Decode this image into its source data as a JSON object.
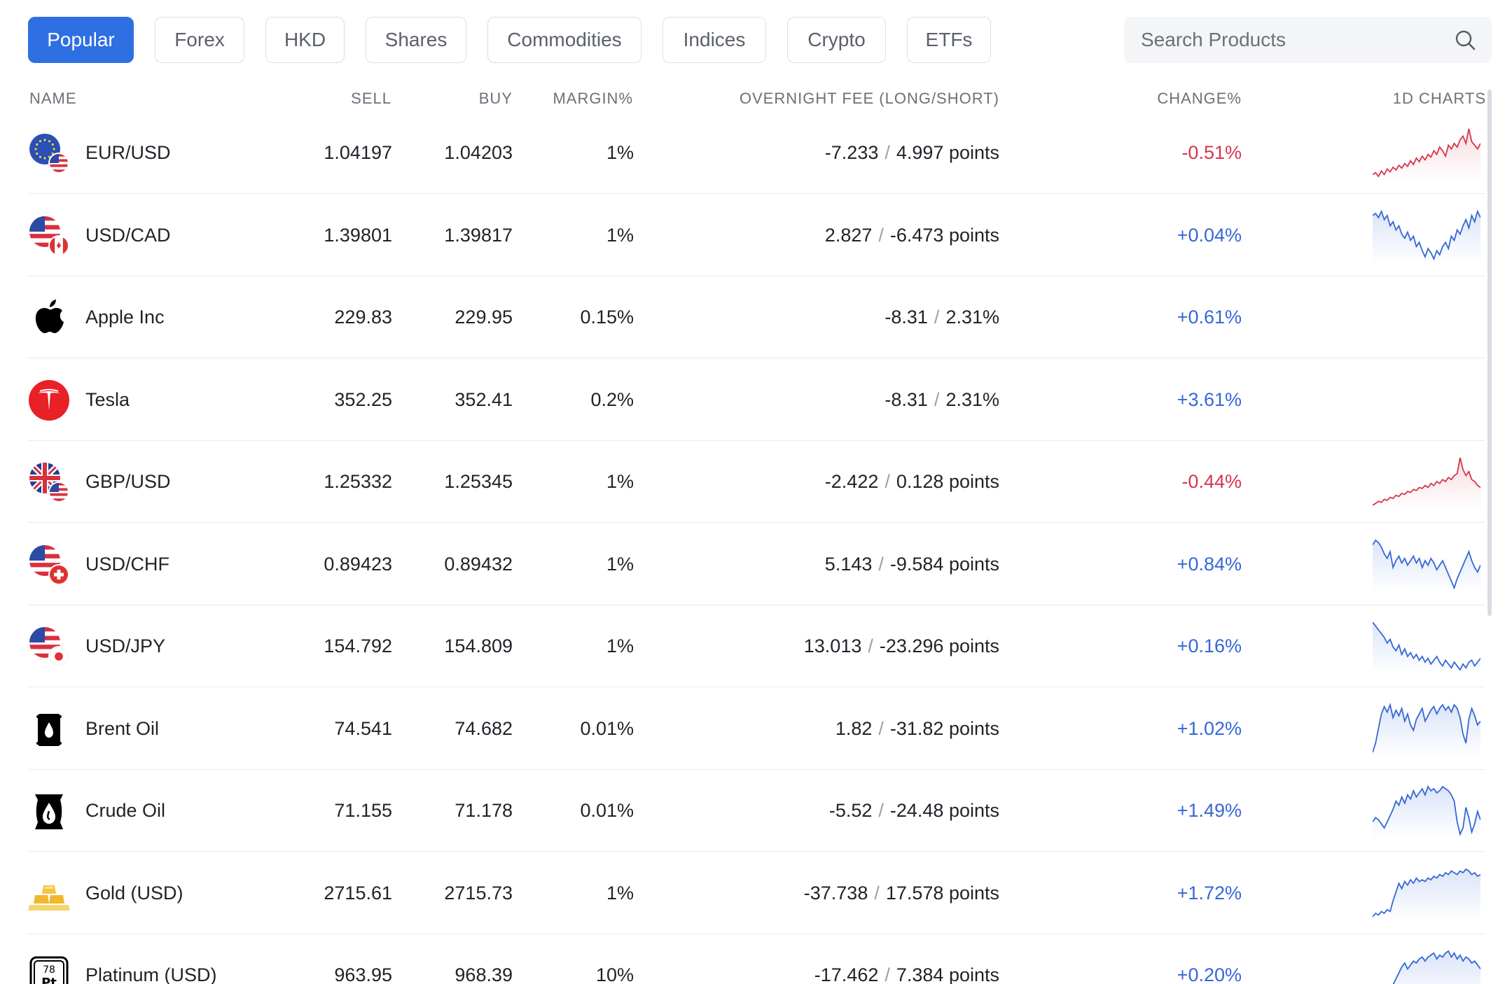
{
  "tabs": [
    {
      "label": "Popular",
      "active": true
    },
    {
      "label": "Forex",
      "active": false
    },
    {
      "label": "HKD",
      "active": false
    },
    {
      "label": "Shares",
      "active": false
    },
    {
      "label": "Commodities",
      "active": false
    },
    {
      "label": "Indices",
      "active": false
    },
    {
      "label": "Crypto",
      "active": false
    },
    {
      "label": "ETFs",
      "active": false
    }
  ],
  "search": {
    "placeholder": "Search Products",
    "icon": "search-icon"
  },
  "columns": {
    "name": "NAME",
    "sell": "SELL",
    "buy": "BUY",
    "margin": "MARGIN%",
    "fee": "OVERNIGHT FEE (LONG/SHORT)",
    "change": "CHANGE%",
    "charts": "1D CHARTS"
  },
  "colors": {
    "accent": "#2f6fe4",
    "negative": "#d6364a",
    "positive": "#3667d6"
  },
  "products": [
    {
      "name": "EUR/USD",
      "icon": "eur-usd-flag-icon",
      "sell": "1.04197",
      "buy": "1.04203",
      "margin": "1%",
      "fee_long": "-7.233",
      "fee_short": "4.997 points",
      "change": "-0.51%",
      "direction": "down",
      "spark": [
        40,
        42,
        38,
        44,
        40,
        46,
        43,
        48,
        45,
        50,
        47,
        52,
        49,
        55,
        51,
        58,
        54,
        60,
        56,
        62,
        59,
        66,
        62,
        70,
        66,
        60,
        72,
        68,
        74,
        70,
        78,
        82,
        74,
        90,
        76,
        72,
        68,
        74
      ]
    },
    {
      "name": "USD/CAD",
      "icon": "usd-cad-flag-icon",
      "sell": "1.39801",
      "buy": "1.39817",
      "margin": "1%",
      "fee_long": "2.827",
      "fee_short": "-6.473 points",
      "change": "+0.04%",
      "direction": "up",
      "spark": [
        70,
        72,
        68,
        74,
        66,
        70,
        60,
        64,
        56,
        60,
        52,
        48,
        54,
        46,
        50,
        40,
        44,
        36,
        30,
        38,
        34,
        28,
        36,
        32,
        40,
        44,
        38,
        50,
        46,
        56,
        52,
        60,
        66,
        58,
        70,
        64,
        74,
        68
      ]
    },
    {
      "name": "Apple Inc",
      "icon": "apple-logo-icon",
      "sell": "229.83",
      "buy": "229.95",
      "margin": "0.15%",
      "fee_long": "-8.31",
      "fee_short": "2.31%",
      "change": "+0.61%",
      "direction": "up",
      "spark": []
    },
    {
      "name": "Tesla",
      "icon": "tesla-logo-icon",
      "sell": "352.25",
      "buy": "352.41",
      "margin": "0.2%",
      "fee_long": "-8.31",
      "fee_short": "2.31%",
      "change": "+3.61%",
      "direction": "up",
      "spark": []
    },
    {
      "name": "GBP/USD",
      "icon": "gbp-usd-flag-icon",
      "sell": "1.25332",
      "buy": "1.25345",
      "margin": "1%",
      "fee_long": "-2.422",
      "fee_short": "0.128 points",
      "change": "-0.44%",
      "direction": "down",
      "spark": [
        40,
        42,
        44,
        43,
        46,
        45,
        48,
        47,
        50,
        49,
        52,
        51,
        54,
        53,
        56,
        55,
        58,
        57,
        60,
        58,
        62,
        60,
        64,
        62,
        66,
        64,
        68,
        66,
        70,
        72,
        88,
        76,
        70,
        74,
        66,
        64,
        60,
        58
      ]
    },
    {
      "name": "USD/CHF",
      "icon": "usd-chf-flag-icon",
      "sell": "0.89423",
      "buy": "0.89432",
      "margin": "1%",
      "fee_long": "5.143",
      "fee_short": "-9.584 points",
      "change": "+0.84%",
      "direction": "up",
      "spark": [
        68,
        72,
        70,
        66,
        60,
        56,
        62,
        48,
        54,
        58,
        52,
        56,
        50,
        54,
        58,
        52,
        56,
        48,
        54,
        50,
        56,
        52,
        46,
        50,
        54,
        48,
        42,
        36,
        30,
        38,
        44,
        50,
        56,
        62,
        54,
        48,
        44,
        50
      ]
    },
    {
      "name": "USD/JPY",
      "icon": "usd-jpy-flag-icon",
      "sell": "154.792",
      "buy": "154.809",
      "margin": "1%",
      "fee_long": "13.013",
      "fee_short": "-23.296 points",
      "change": "+0.16%",
      "direction": "up",
      "spark": [
        78,
        74,
        70,
        66,
        62,
        56,
        60,
        52,
        48,
        54,
        44,
        50,
        42,
        46,
        40,
        44,
        38,
        42,
        36,
        40,
        34,
        38,
        42,
        36,
        32,
        38,
        34,
        30,
        36,
        32,
        28,
        34,
        30,
        36,
        38,
        32,
        36,
        40
      ]
    },
    {
      "name": "Brent Oil",
      "icon": "brent-oil-barrel-icon",
      "sell": "74.541",
      "buy": "74.682",
      "margin": "0.01%",
      "fee_long": "1.82",
      "fee_short": "-31.82 points",
      "change": "+1.02%",
      "direction": "up",
      "spark": [
        20,
        30,
        46,
        62,
        70,
        64,
        72,
        58,
        66,
        60,
        68,
        54,
        62,
        50,
        44,
        56,
        62,
        68,
        54,
        60,
        66,
        70,
        62,
        68,
        72,
        66,
        70,
        64,
        72,
        68,
        58,
        40,
        30,
        56,
        68,
        60,
        50,
        54
      ]
    },
    {
      "name": "Crude Oil",
      "icon": "crude-oil-barrel-icon",
      "sell": "71.155",
      "buy": "71.178",
      "margin": "0.01%",
      "fee_long": "-5.52",
      "fee_short": "-24.48 points",
      "change": "+1.49%",
      "direction": "up",
      "spark": [
        40,
        44,
        42,
        38,
        34,
        40,
        46,
        52,
        60,
        56,
        64,
        58,
        66,
        62,
        70,
        64,
        68,
        72,
        66,
        74,
        70,
        72,
        68,
        70,
        74,
        72,
        70,
        66,
        60,
        40,
        28,
        34,
        54,
        44,
        30,
        38,
        50,
        42
      ]
    },
    {
      "name": "Gold (USD)",
      "icon": "gold-bars-icon",
      "sell": "2715.61",
      "buy": "2715.73",
      "margin": "1%",
      "fee_long": "-37.738",
      "fee_short": "17.578 points",
      "change": "+1.72%",
      "direction": "up",
      "spark": [
        20,
        24,
        22,
        26,
        24,
        28,
        26,
        38,
        48,
        58,
        52,
        60,
        56,
        62,
        58,
        64,
        60,
        62,
        60,
        64,
        62,
        66,
        64,
        68,
        66,
        70,
        68,
        72,
        70,
        68,
        72,
        70,
        74,
        72,
        68,
        70,
        66,
        68
      ]
    },
    {
      "name": "Platinum (USD)",
      "icon": "platinum-element-icon",
      "sell": "963.95",
      "buy": "968.39",
      "margin": "10%",
      "fee_long": "-17.462",
      "fee_short": "7.384 points",
      "change": "+0.20%",
      "direction": "up",
      "spark": [
        20,
        22,
        24,
        26,
        28,
        26,
        30,
        34,
        40,
        46,
        52,
        56,
        50,
        54,
        58,
        56,
        60,
        62,
        58,
        62,
        64,
        66,
        60,
        64,
        62,
        66,
        68,
        62,
        66,
        60,
        64,
        58,
        62,
        60,
        56,
        58,
        54,
        50
      ]
    }
  ]
}
